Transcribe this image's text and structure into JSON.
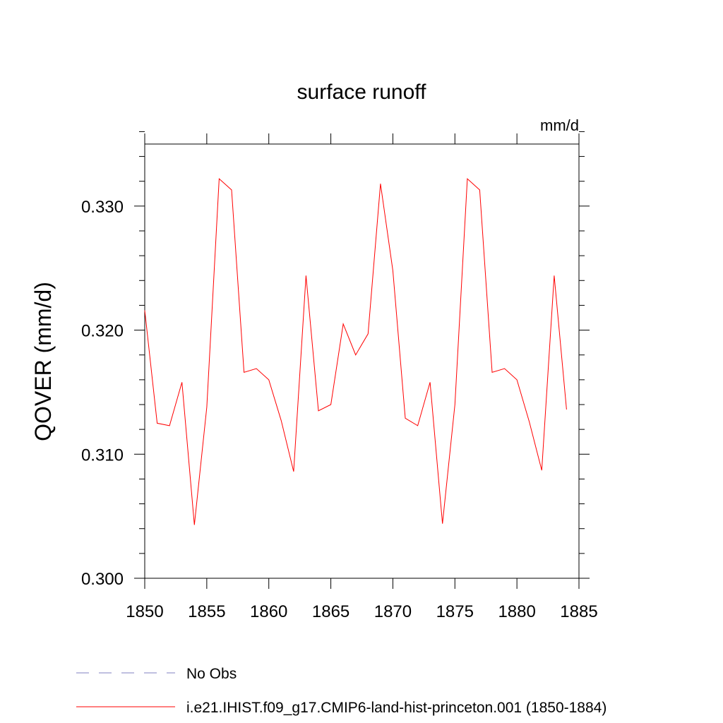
{
  "chart_data": {
    "type": "line",
    "title": "surface runoff",
    "units": "mm/d",
    "ylabel": "QOVER  (mm/d)",
    "xlabel": "",
    "xlim": [
      1850,
      1885
    ],
    "ylim": [
      0.3,
      0.335
    ],
    "xticks": [
      1850,
      1855,
      1860,
      1865,
      1870,
      1875,
      1880,
      1885
    ],
    "xtick_labels": [
      "1850",
      "1855",
      "1860",
      "1865",
      "1870",
      "1875",
      "1880",
      "1885"
    ],
    "yticks": [
      0.3,
      0.31,
      0.32,
      0.33
    ],
    "ytick_labels": [
      "0.300",
      "0.310",
      "0.320",
      "0.330"
    ],
    "y_minor_step": 0.002,
    "x_minor_step": 1,
    "grid": false,
    "legend_position": "bottom",
    "series": [
      {
        "name": "No Obs",
        "color": "#8080c0",
        "dashed": true,
        "x": [],
        "y": []
      },
      {
        "name": "i.e21.IHIST.f09_g17.CMIP6-land-hist-princeton.001 (1850-1884)",
        "color": "#ff0000",
        "dashed": false,
        "x": [
          1850,
          1851,
          1852,
          1853,
          1854,
          1855,
          1856,
          1857,
          1858,
          1859,
          1860,
          1861,
          1862,
          1863,
          1864,
          1865,
          1866,
          1867,
          1868,
          1869,
          1870,
          1871,
          1872,
          1873,
          1874,
          1875,
          1876,
          1877,
          1878,
          1879,
          1880,
          1881,
          1882,
          1883,
          1884
        ],
        "y": [
          0.3216,
          0.3125,
          0.3123,
          0.3158,
          0.3043,
          0.3138,
          0.3322,
          0.3313,
          0.3166,
          0.3169,
          0.316,
          0.3127,
          0.3086,
          0.3244,
          0.3135,
          0.314,
          0.3205,
          0.318,
          0.3197,
          0.3318,
          0.3248,
          0.3129,
          0.3123,
          0.3158,
          0.3044,
          0.314,
          0.3322,
          0.3313,
          0.3166,
          0.3169,
          0.316,
          0.3126,
          0.3087,
          0.3244,
          0.3136
        ]
      }
    ]
  }
}
